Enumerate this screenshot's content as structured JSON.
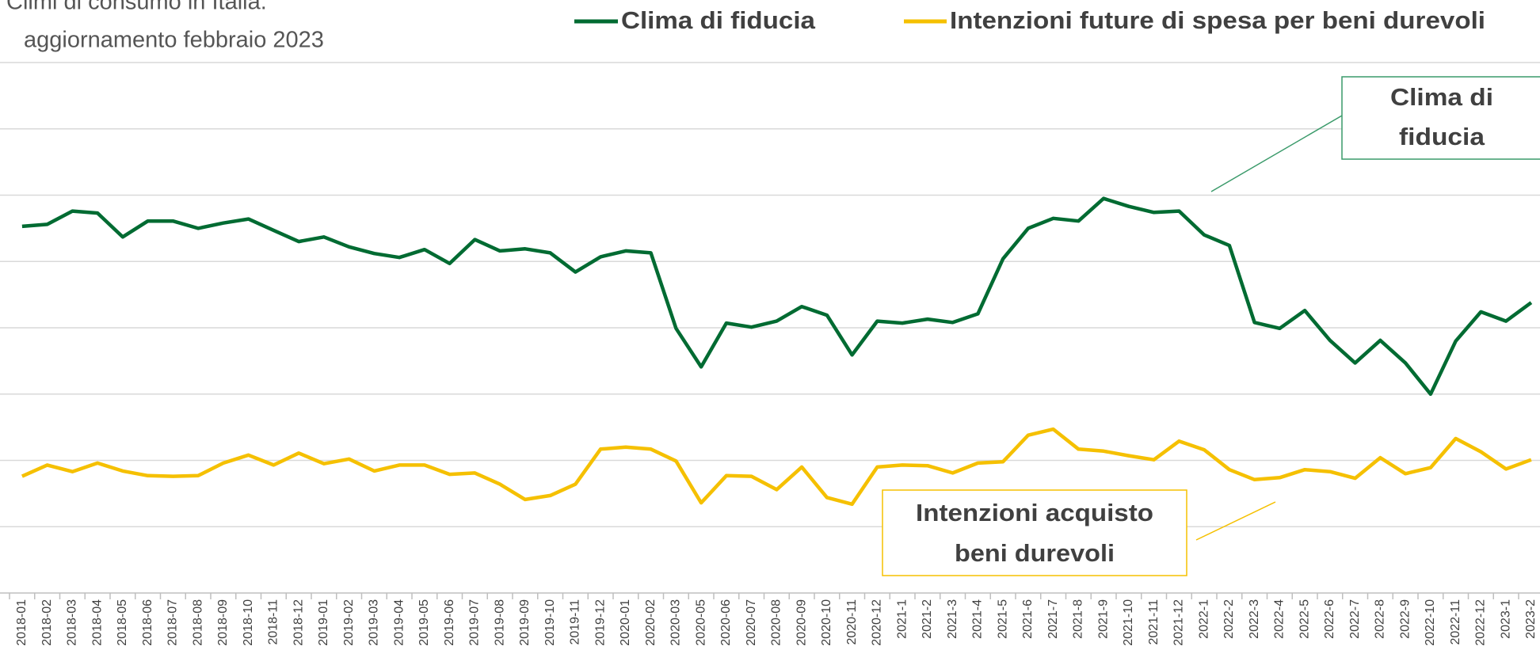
{
  "chart_data": {
    "type": "line",
    "title": "Climi di consumo in Italia.",
    "subtitle": "aggiornamento febbraio 2023",
    "categories": [
      "2018-01",
      "2018-02",
      "2018-03",
      "2018-04",
      "2018-05",
      "2018-06",
      "2018-07",
      "2018-08",
      "2018-09",
      "2018-10",
      "2018-11",
      "2018-12",
      "2019-01",
      "2019-02",
      "2019-03",
      "2019-04",
      "2019-05",
      "2019-06",
      "2019-07",
      "2019-08",
      "2019-09",
      "2019-10",
      "2019-11",
      "2019-12",
      "2020-01",
      "2020-02",
      "2020-03",
      "2020-05",
      "2020-06",
      "2020-07",
      "2020-08",
      "2020-09",
      "2020-10",
      "2020-11",
      "2020-12",
      "2021-1",
      "2021-2",
      "2021-3",
      "2021-4",
      "2021-5",
      "2021-6",
      "2021-7",
      "2021-8",
      "2021-9",
      "2021-10",
      "2021-11",
      "2021-12",
      "2022-1",
      "2022-2",
      "2022-3",
      "2022-4",
      "2022-5",
      "2022-6",
      "2022-7",
      "2022-8",
      "2022-9",
      "2022-10",
      "2022-11",
      "2022-12",
      "2023-1",
      "2023-2"
    ],
    "series": [
      {
        "name": "Clima di fiducia",
        "color": "#006b32",
        "values": [
          115.3,
          115.6,
          117.6,
          117.3,
          113.7,
          116.1,
          116.1,
          115.0,
          115.8,
          116.4,
          114.7,
          113.0,
          113.7,
          112.2,
          111.2,
          110.6,
          111.8,
          109.7,
          113.3,
          111.6,
          111.9,
          111.3,
          108.4,
          110.7,
          111.6,
          111.3,
          99.9,
          94.1,
          100.7,
          100.1,
          101.0,
          103.2,
          101.9,
          95.9,
          101.0,
          100.7,
          101.3,
          100.8,
          102.1,
          110.4,
          115.0,
          116.5,
          116.1,
          119.5,
          118.3,
          117.4,
          117.6,
          114.0,
          112.4,
          100.8,
          99.9,
          102.6,
          98.1,
          94.7,
          98.1,
          94.7,
          90.0,
          98.0,
          102.4,
          101.0,
          103.8
        ]
      },
      {
        "name": "Intenzioni future di spesa per beni durevoli",
        "color": "#f5c000",
        "values": [
          77.6,
          79.3,
          78.3,
          79.6,
          78.4,
          77.7,
          77.6,
          77.7,
          79.6,
          80.8,
          79.3,
          81.1,
          79.5,
          80.2,
          78.4,
          79.3,
          79.3,
          77.9,
          78.1,
          76.4,
          74.1,
          74.7,
          76.4,
          81.7,
          82.0,
          81.7,
          79.9,
          73.6,
          77.7,
          77.6,
          75.6,
          79.0,
          74.4,
          73.4,
          79.0,
          79.3,
          79.2,
          78.1,
          79.6,
          79.8,
          83.8,
          84.7,
          81.7,
          81.4,
          80.7,
          80.1,
          82.9,
          81.6,
          78.6,
          77.1,
          77.4,
          78.6,
          78.3,
          77.3,
          80.4,
          78.0,
          78.9,
          83.3,
          81.3,
          78.7,
          80.1
        ]
      }
    ],
    "ylim": [
      60,
      140
    ],
    "yticks": [
      60,
      70,
      80,
      90,
      100,
      110,
      120,
      130,
      140
    ],
    "grid": true,
    "annotations": [
      {
        "lines": [
          "Clima di",
          "fiducia"
        ],
        "color": "#3a9a6a"
      },
      {
        "lines": [
          "Intenzioni acquisto",
          "beni durevoli"
        ],
        "color": "#f5c000"
      }
    ]
  }
}
